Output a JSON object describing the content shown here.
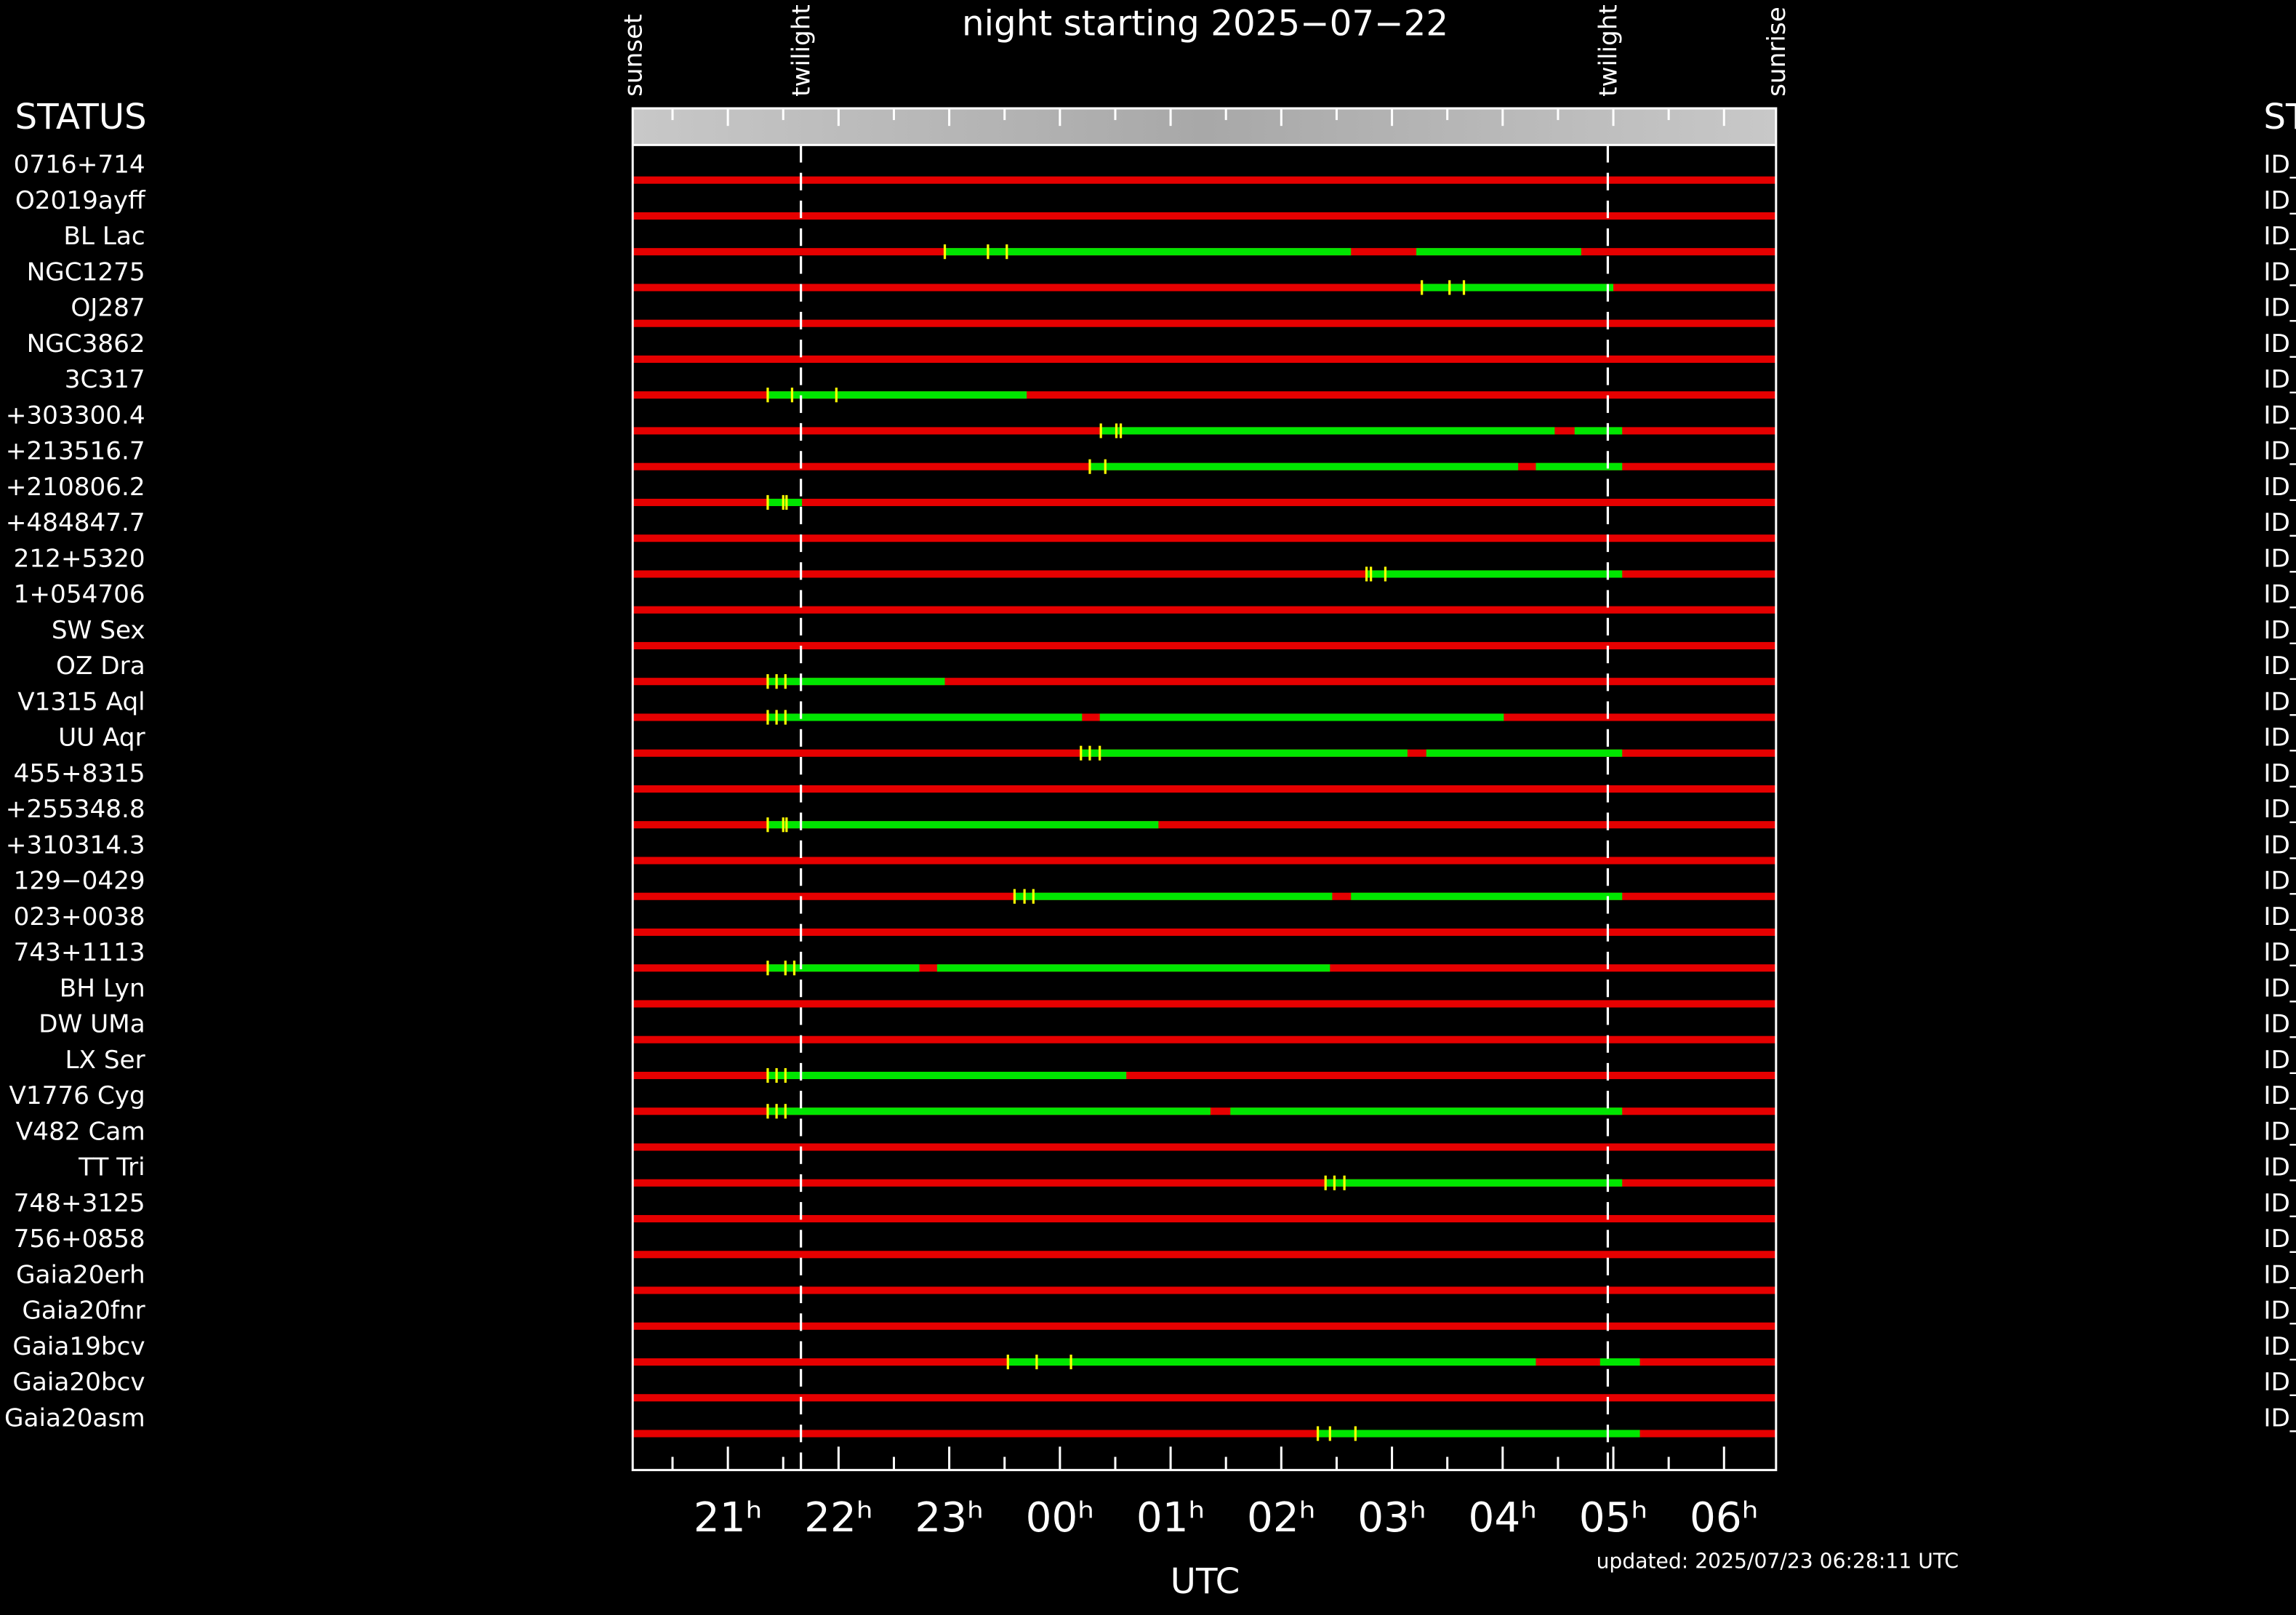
{
  "chart_data": {
    "type": "timeline",
    "title": "night starting 2025−07−22",
    "xlabel": "UTC",
    "footer": "updated: 2025/07/23 06:28:11 UTC",
    "row_header": "STATUS",
    "status_header": "ST",
    "xlim": [
      20.14,
      30.47
    ],
    "xticks": [
      {
        "value": 21,
        "label": "21ʰ"
      },
      {
        "value": 22,
        "label": "22ʰ"
      },
      {
        "value": 23,
        "label": "23ʰ"
      },
      {
        "value": 24,
        "label": "00ʰ"
      },
      {
        "value": 25,
        "label": "01ʰ"
      },
      {
        "value": 26,
        "label": "02ʰ"
      },
      {
        "value": 27,
        "label": "03ʰ"
      },
      {
        "value": 28,
        "label": "04ʰ"
      },
      {
        "value": 29,
        "label": "05ʰ"
      },
      {
        "value": 30,
        "label": "06ʰ"
      }
    ],
    "xminorticks": [
      20.5,
      21.5,
      22.5,
      23.5,
      24.5,
      25.5,
      26.5,
      27.5,
      28.5,
      29.5
    ],
    "events": [
      {
        "label": "sunset",
        "time": 20.14,
        "dashed": false
      },
      {
        "label": "twilight",
        "time": 21.66,
        "dashed": true
      },
      {
        "label": "twilight",
        "time": 28.95,
        "dashed": true
      },
      {
        "label": "sunrise",
        "time": 30.47,
        "dashed": false
      }
    ],
    "colors": {
      "available": "#00e600",
      "unavailable": "#e60000",
      "observation": "#ffff00"
    },
    "rows": [
      {
        "name": "0716+714",
        "status": "ID_",
        "available": [],
        "marks": []
      },
      {
        "name": "O2019ayff",
        "status": "ID_",
        "available": [],
        "marks": []
      },
      {
        "name": "BL Lac",
        "status": "ID_",
        "available": [
          [
            22.96,
            26.63
          ],
          [
            27.22,
            28.71
          ]
        ],
        "marks": [
          22.96,
          23.35,
          23.52
        ]
      },
      {
        "name": "NGC1275",
        "status": "ID_",
        "available": [
          [
            27.26,
            29.0
          ]
        ],
        "marks": [
          27.27,
          27.52,
          27.65
        ]
      },
      {
        "name": "OJ287",
        "status": "ID_",
        "available": [],
        "marks": []
      },
      {
        "name": "NGC3862",
        "status": "ID_",
        "available": [],
        "marks": []
      },
      {
        "name": "3C317",
        "status": "ID_",
        "available": [
          [
            21.36,
            23.7
          ]
        ],
        "marks": [
          21.36,
          21.58,
          21.98
        ]
      },
      {
        "name": "+303300.4",
        "status": "ID_",
        "available": [
          [
            24.37,
            28.47
          ],
          [
            28.65,
            29.08
          ]
        ],
        "marks": [
          24.37,
          24.51,
          24.55
        ]
      },
      {
        "name": "+213516.7",
        "status": "ID_",
        "available": [
          [
            24.27,
            28.14
          ],
          [
            28.3,
            29.08
          ]
        ],
        "marks": [
          24.27,
          24.41
        ]
      },
      {
        "name": "+210806.2",
        "status": "ID_",
        "available": [
          [
            21.36,
            21.67
          ]
        ],
        "marks": [
          21.36,
          21.5,
          21.53
        ]
      },
      {
        "name": "+484847.7",
        "status": "ID_",
        "available": [],
        "marks": []
      },
      {
        "name": "212+5320",
        "status": "ID_",
        "available": [
          [
            26.77,
            29.08
          ]
        ],
        "marks": [
          26.77,
          26.81,
          26.94
        ]
      },
      {
        "name": "1+054706",
        "status": "ID_",
        "available": [],
        "marks": []
      },
      {
        "name": "SW Sex",
        "status": "ID_",
        "available": [],
        "marks": []
      },
      {
        "name": "OZ Dra",
        "status": "ID_",
        "available": [
          [
            21.36,
            22.96
          ]
        ],
        "marks": [
          21.36,
          21.44,
          21.52
        ]
      },
      {
        "name": "V1315 Aql",
        "status": "ID_",
        "available": [
          [
            21.36,
            24.2
          ],
          [
            24.36,
            28.01
          ]
        ],
        "marks": [
          21.36,
          21.44,
          21.52
        ]
      },
      {
        "name": "UU Aqr",
        "status": "ID_",
        "available": [
          [
            24.19,
            27.14
          ],
          [
            27.31,
            29.08
          ]
        ],
        "marks": [
          24.19,
          24.27,
          24.36
        ]
      },
      {
        "name": "455+8315",
        "status": "ID_",
        "available": [],
        "marks": []
      },
      {
        "name": "+255348.8",
        "status": "ID_",
        "available": [
          [
            21.36,
            24.89
          ]
        ],
        "marks": [
          21.36,
          21.5,
          21.53
        ]
      },
      {
        "name": "+310314.3",
        "status": "ID_",
        "available": [],
        "marks": []
      },
      {
        "name": "129−0429",
        "status": "ID_",
        "available": [
          [
            23.59,
            26.46
          ],
          [
            26.63,
            29.08
          ]
        ],
        "marks": [
          23.59,
          23.68,
          23.76
        ]
      },
      {
        "name": "023+0038",
        "status": "ID_",
        "available": [],
        "marks": []
      },
      {
        "name": "743+1113",
        "status": "ID_",
        "available": [
          [
            21.36,
            22.73
          ],
          [
            22.89,
            26.44
          ]
        ],
        "marks": [
          21.36,
          21.52,
          21.6
        ]
      },
      {
        "name": "BH Lyn",
        "status": "ID_",
        "available": [],
        "marks": []
      },
      {
        "name": "DW UMa",
        "status": "ID_",
        "available": [],
        "marks": []
      },
      {
        "name": "LX Ser",
        "status": "ID_",
        "available": [
          [
            21.36,
            24.6
          ]
        ],
        "marks": [
          21.36,
          21.44,
          21.52
        ]
      },
      {
        "name": "V1776 Cyg",
        "status": "ID_",
        "available": [
          [
            21.36,
            25.36
          ],
          [
            25.54,
            29.08
          ]
        ],
        "marks": [
          21.36,
          21.44,
          21.52
        ]
      },
      {
        "name": "V482 Cam",
        "status": "ID_",
        "available": [],
        "marks": []
      },
      {
        "name": "TT Tri",
        "status": "ID_",
        "available": [
          [
            26.4,
            29.08
          ]
        ],
        "marks": [
          26.4,
          26.48,
          26.57
        ]
      },
      {
        "name": "748+3125",
        "status": "ID_",
        "available": [],
        "marks": []
      },
      {
        "name": "756+0858",
        "status": "ID_",
        "available": [],
        "marks": []
      },
      {
        "name": "Gaia20erh",
        "status": "ID_",
        "available": [],
        "marks": []
      },
      {
        "name": "Gaia20fnr",
        "status": "ID_",
        "available": [],
        "marks": []
      },
      {
        "name": "Gaia19bcv",
        "status": "ID_",
        "available": [
          [
            23.53,
            28.3
          ],
          [
            28.88,
            29.24
          ]
        ],
        "marks": [
          23.53,
          23.79,
          24.1
        ]
      },
      {
        "name": "Gaia20bcv",
        "status": "ID_",
        "available": [],
        "marks": []
      },
      {
        "name": "Gaia20asm",
        "status": "ID_",
        "available": [
          [
            26.33,
            29.24
          ]
        ],
        "marks": [
          26.33,
          26.44,
          26.67
        ]
      }
    ]
  }
}
